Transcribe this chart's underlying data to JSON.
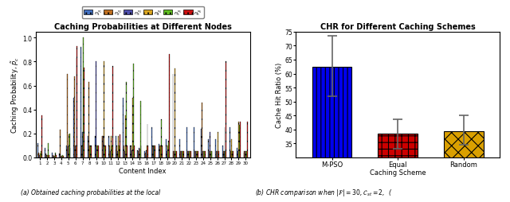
{
  "left_title": "Caching Probabilities at Different Nodes",
  "left_xlabel": "Content Index",
  "left_ylabel": "Caching Probability, $\\tilde{p}_c$",
  "left_ylim": [
    0.0,
    1.05
  ],
  "left_yticks": [
    0.0,
    0.2,
    0.4,
    0.6,
    0.8,
    1.0
  ],
  "n_contents": 30,
  "node_colors": [
    "#4472C4",
    "#C07020",
    "#5050B0",
    "#DAA520",
    "#60C020",
    "#CC1010"
  ],
  "node_labels": [
    "$n_1^{s_1}$",
    "$n_2^{s_2}$",
    "$n_3^{s_3}$",
    "$n_4^{s_4}$",
    "$n_5^{s_5}$",
    "$n_6^{s_6}$"
  ],
  "caching_data": [
    [
      0.12,
      0.08,
      0.04,
      0.03,
      0.1,
      0.5,
      0.92,
      0.18,
      0.18,
      0.18,
      0.18,
      0.18,
      0.5,
      0.1,
      0.06,
      0.05,
      0.25,
      0.11,
      0.15,
      0.7,
      0.15,
      0.25,
      0.25,
      0.24,
      0.15,
      0.15,
      0.1,
      0.25,
      0.08,
      0.04
    ],
    [
      0.04,
      0.03,
      0.02,
      0.23,
      0.7,
      0.68,
      0.1,
      0.63,
      0.1,
      0.18,
      0.1,
      0.1,
      0.1,
      0.1,
      0.05,
      0.04,
      0.1,
      0.1,
      0.1,
      0.05,
      0.05,
      0.05,
      0.05,
      0.46,
      0.05,
      0.05,
      0.05,
      0.05,
      0.05,
      0.05
    ],
    [
      0.02,
      0.02,
      0.01,
      0.01,
      0.09,
      0.1,
      0.21,
      0.1,
      0.8,
      0.18,
      0.05,
      0.05,
      0.05,
      0.06,
      0.08,
      0.06,
      0.1,
      0.05,
      0.05,
      0.05,
      0.05,
      0.05,
      0.05,
      0.05,
      0.21,
      0.05,
      0.05,
      0.05,
      0.05,
      0.05
    ],
    [
      0.03,
      0.02,
      0.01,
      0.01,
      0.19,
      0.1,
      0.1,
      0.1,
      0.1,
      0.8,
      0.18,
      0.18,
      0.35,
      0.5,
      0.07,
      0.1,
      0.1,
      0.1,
      0.1,
      0.74,
      0.05,
      0.05,
      0.05,
      0.05,
      0.05,
      0.21,
      0.25,
      0.15,
      0.3,
      0.05
    ],
    [
      0.05,
      0.12,
      0.04,
      0.02,
      0.2,
      0.83,
      1.0,
      0.1,
      0.1,
      0.1,
      0.1,
      0.1,
      0.63,
      0.78,
      0.47,
      0.28,
      0.1,
      0.32,
      0.14,
      0.05,
      0.05,
      0.05,
      0.05,
      0.05,
      0.05,
      0.05,
      0.05,
      0.05,
      0.27,
      0.05
    ],
    [
      0.35,
      0.02,
      0.02,
      0.01,
      0.08,
      0.93,
      0.75,
      0.1,
      0.1,
      0.1,
      0.76,
      0.19,
      0.1,
      0.1,
      0.1,
      0.1,
      0.1,
      0.1,
      0.86,
      0.05,
      0.05,
      0.05,
      0.05,
      0.05,
      0.05,
      0.05,
      0.8,
      0.05,
      0.3,
      0.3
    ]
  ],
  "right_title": "CHR for Different Caching Schemes",
  "right_ylabel": "Cache Hit Ratio (%)",
  "right_ylim": [
    30,
    75
  ],
  "right_yticks": [
    35,
    40,
    45,
    50,
    55,
    60,
    65,
    70,
    75
  ],
  "bar_labels": [
    "M-PSO",
    "Equal\nCaching Scheme",
    "Random"
  ],
  "bar_values": [
    62.5,
    38.5,
    39.5
  ],
  "bar_errors_low": [
    10.5,
    5.5,
    5.0
  ],
  "bar_errors_high": [
    11.0,
    5.0,
    5.5
  ],
  "bar_colors_right": [
    "#0000EE",
    "#CC0000",
    "#DAA000"
  ],
  "bar_hatch": [
    "|||",
    "++",
    "xx"
  ],
  "error_bar_color": "#666666",
  "caption_left": "(a) Obtained caching probabilities at the local",
  "caption_right": "(b) CHR comparison when $|\\mathcal{F}| = 30$, $\\mathcal{C}_{st} = 2$,  ("
}
